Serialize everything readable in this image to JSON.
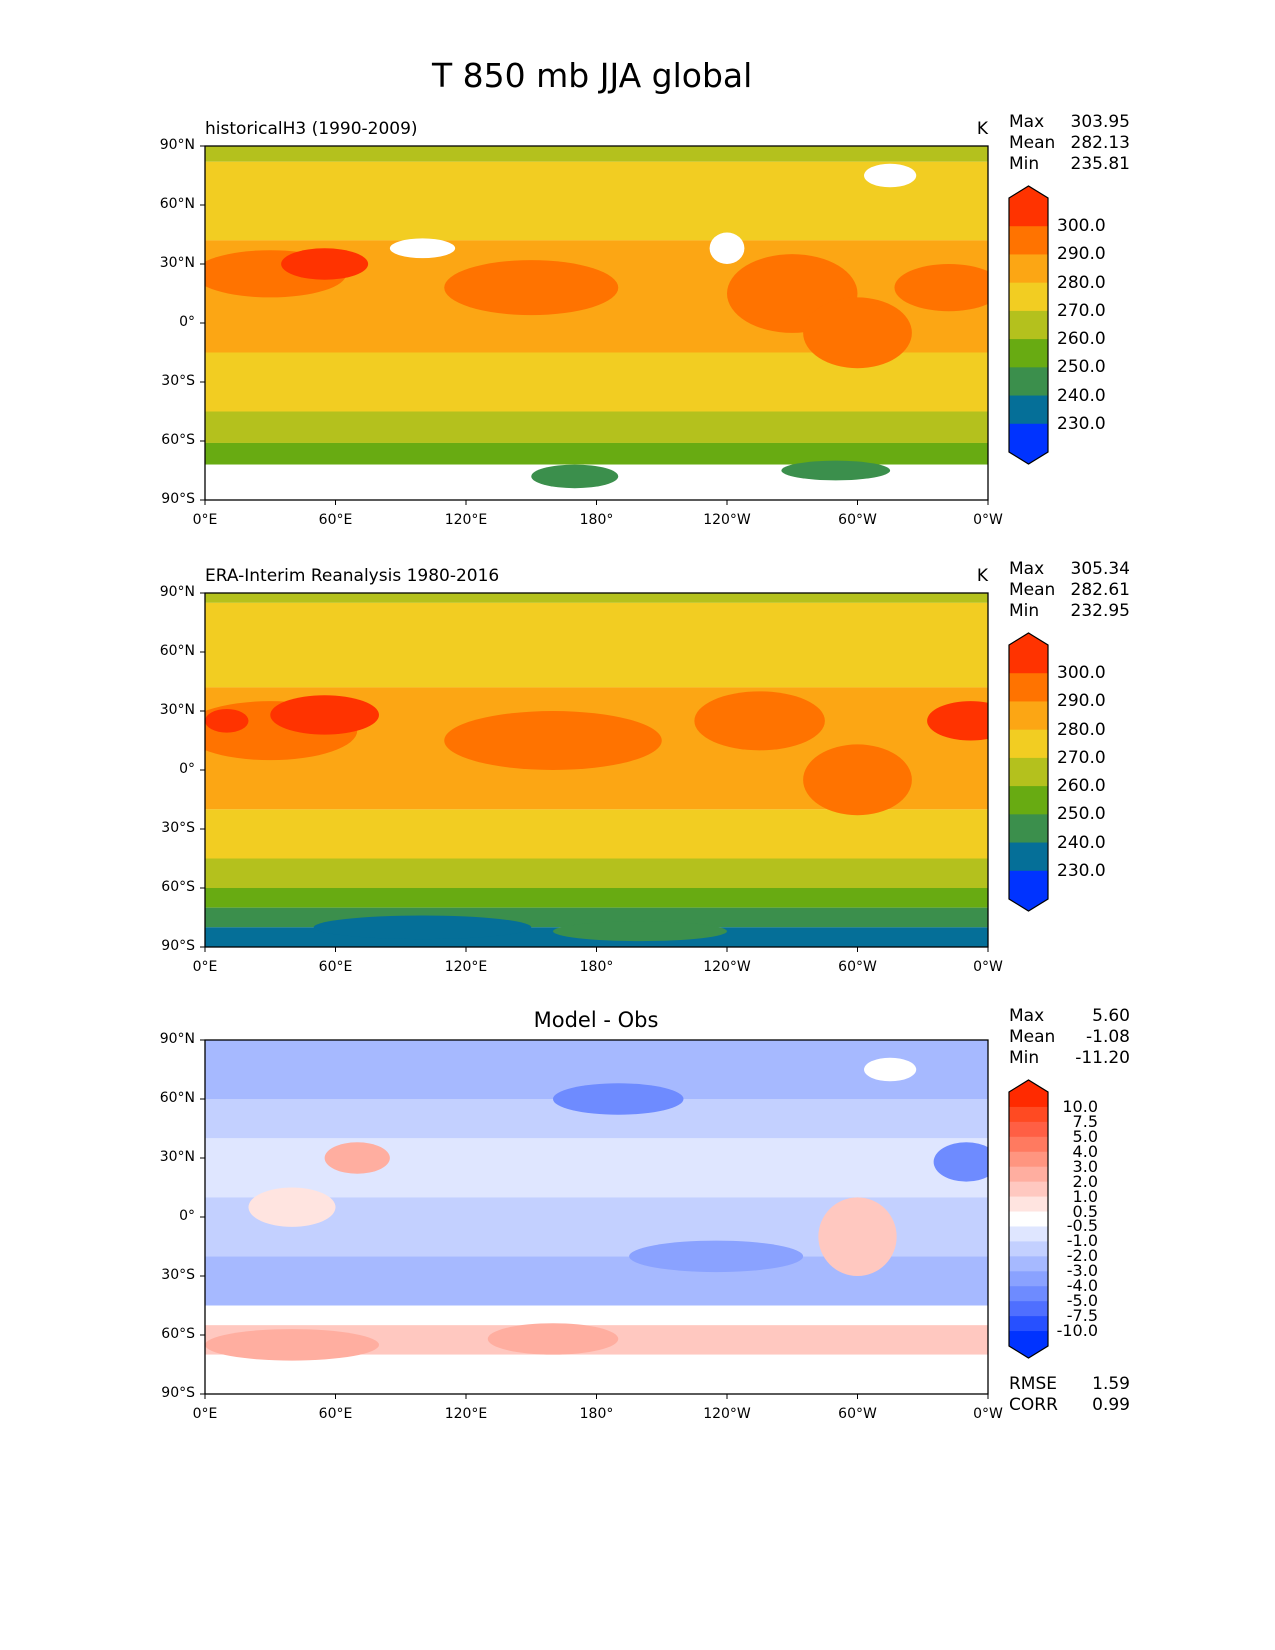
{
  "chart_data": {
    "type": "heatmap",
    "title": "T 850 mb JJA global",
    "panels": [
      {
        "title": "historicalH3 (1990-2009)",
        "units": "K",
        "stats": {
          "Max": "303.95",
          "Mean": "282.13",
          "Min": "235.81"
        },
        "levels": [
          "300.0",
          "290.0",
          "280.0",
          "270.0",
          "260.0",
          "250.0",
          "240.0",
          "230.0"
        ],
        "colors": [
          "#ff3300",
          "#ff7300",
          "#fca614",
          "#f2cd22",
          "#b4c11d",
          "#68ab12",
          "#3b8f4c",
          "#056f98",
          "#0033ff"
        ]
      },
      {
        "title": "ERA-Interim Reanalysis 1980-2016",
        "units": "K",
        "stats": {
          "Max": "305.34",
          "Mean": "282.61",
          "Min": "232.95"
        },
        "levels": [
          "300.0",
          "290.0",
          "280.0",
          "270.0",
          "260.0",
          "250.0",
          "240.0",
          "230.0"
        ],
        "colors": [
          "#ff3300",
          "#ff7300",
          "#fca614",
          "#f2cd22",
          "#b4c11d",
          "#68ab12",
          "#3b8f4c",
          "#056f98",
          "#0033ff"
        ]
      },
      {
        "title": "Model - Obs",
        "units": "",
        "stats": {
          "Max": "5.60",
          "Mean": "-1.08",
          "Min": "-11.20"
        },
        "levels": [
          "10.0",
          "7.5",
          "5.0",
          "4.0",
          "3.0",
          "2.0",
          "1.0",
          "0.5",
          "-0.5",
          "-1.0",
          "-2.0",
          "-3.0",
          "-4.0",
          "-5.0",
          "-7.5",
          "-10.0"
        ],
        "colors": [
          "#ff2a00",
          "#ff4a22",
          "#ff5f44",
          "#ff7a60",
          "#ff9580",
          "#ffaea0",
          "#ffc8c0",
          "#ffe4e0",
          "#ffffff",
          "#dfe6ff",
          "#c3d0ff",
          "#a6b9ff",
          "#8aa2ff",
          "#6e8bff",
          "#4f6fff",
          "#2750ff",
          "#0033ff"
        ],
        "RMSE": "1.59",
        "CORR": "0.99"
      }
    ],
    "xticks": [
      "0°E",
      "60°E",
      "120°E",
      "180°",
      "120°W",
      "60°W",
      "0°W"
    ],
    "yticks": [
      "90°N",
      "60°N",
      "30°N",
      "0°",
      "30°S",
      "60°S",
      "90°S"
    ],
    "stat_labels": {
      "max": "Max",
      "mean": "Mean",
      "min": "Min",
      "rmse": "RMSE",
      "corr": "CORR"
    }
  }
}
